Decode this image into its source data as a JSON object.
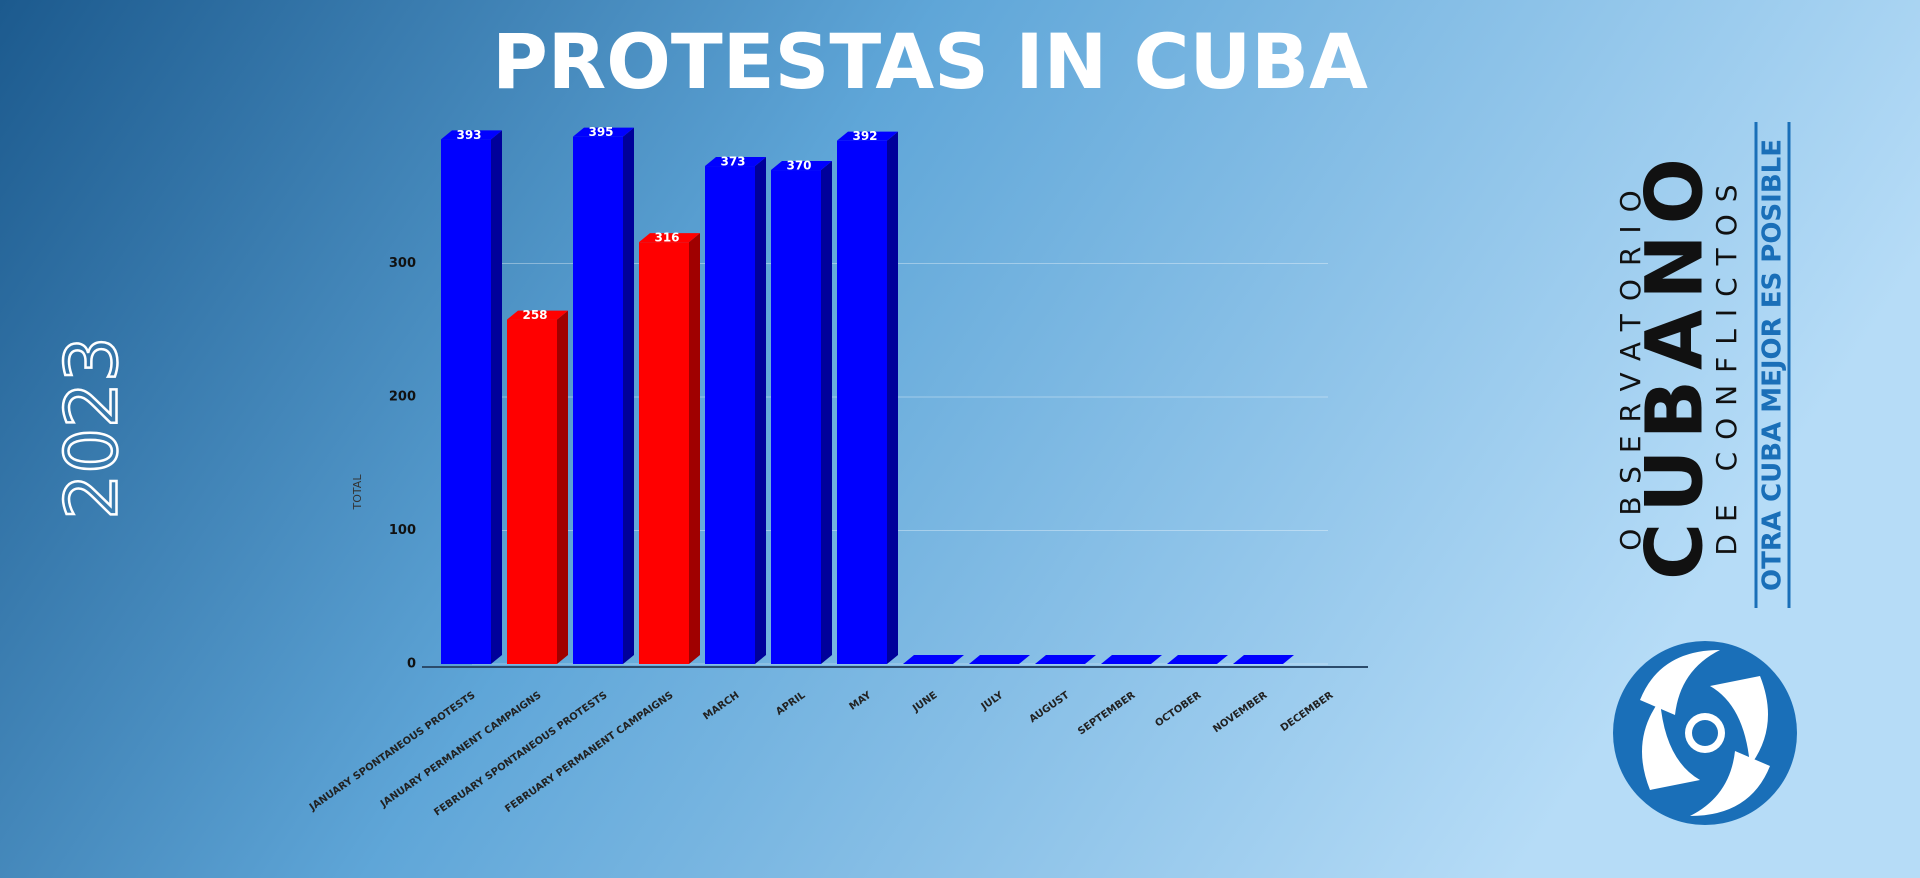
{
  "chart_data": {
    "type": "bar",
    "title": "PROTESTAS IN CUBA",
    "subtitle": "2023",
    "categories": [
      "JANUARY SPONTANEOUS PROTESTS",
      "JANUARY PERMANENT CAMPAIGNS",
      "FEBRUARY SPONTANEOUS PROTESTS",
      "FEBRUARY PERMANENT CAMPAIGNS",
      "MARCH",
      "APRIL",
      "MAY",
      "JUNE",
      "JULY",
      "AUGUST",
      "SEPTEMBER",
      "OCTOBER",
      "NOVEMBER",
      "DECEMBER"
    ],
    "values": [
      393,
      258,
      395,
      316,
      373,
      370,
      392,
      0,
      0,
      0,
      0,
      0,
      0,
      null
    ],
    "colors": [
      "#0000ff",
      "#ff0000",
      "#0000ff",
      "#ff0000",
      "#0000ff",
      "#0000ff",
      "#0000ff",
      "#0000ff",
      "#0000ff",
      "#0000ff",
      "#0000ff",
      "#0000ff",
      "#0000ff",
      "#0000ff"
    ],
    "y_label": "TOTAL",
    "ylim": [
      0,
      400
    ],
    "yticks": [
      0,
      100,
      200,
      300
    ],
    "grid": true
  },
  "logo": {
    "line1": "OBSERVATORIO",
    "line2": "CUBANO",
    "line3": "DE CONFLICTOS",
    "tagline": "OTRA CUBA MEJOR ES POSIBLE"
  }
}
